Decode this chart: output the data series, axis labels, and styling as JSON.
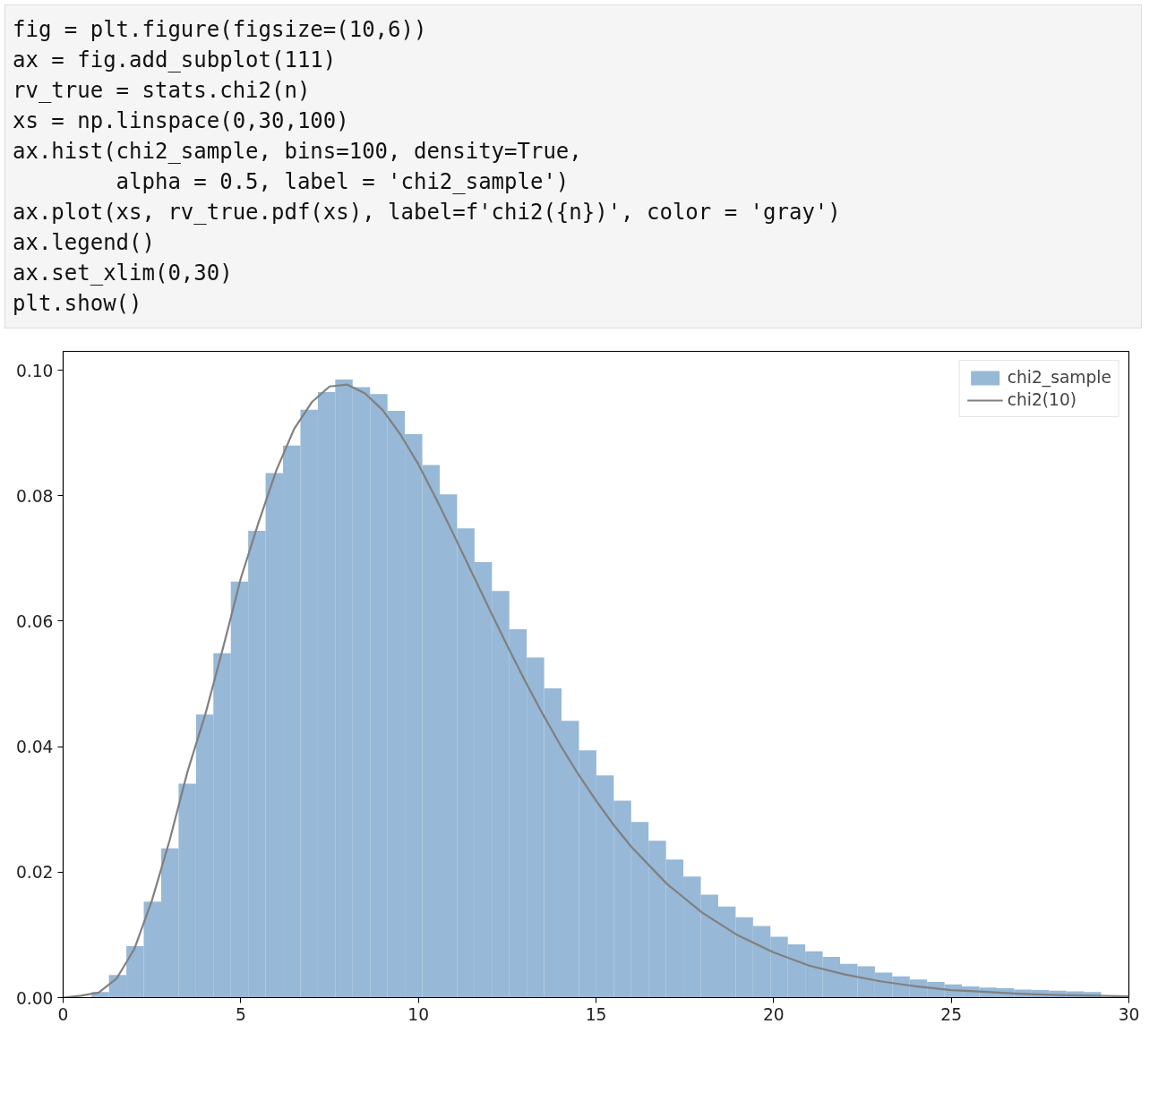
{
  "chart_data": {
    "type": "histogram",
    "annotations": [
      "fig = plt.figure(figsize=(10,6))",
      "ax = fig.add_subplot(111)",
      "rv_true = stats.chi2(n)",
      "xs = np.linspace(0,30,100)",
      "ax.hist(chi2_sample, bins=100, density=True,",
      "        alpha = 0.5, label = 'chi2_sample')",
      "ax.plot(xs, rv_true.pdf(xs), label=f'chi2({n})', color = 'gray')",
      "ax.legend()",
      "ax.set_xlim(0,30)",
      "plt.show()"
    ],
    "bins": [
      0.8,
      1.29,
      1.78,
      2.27,
      2.76,
      3.25,
      3.74,
      4.23,
      4.72,
      5.21,
      5.7,
      6.19,
      6.68,
      7.17,
      7.66,
      8.15,
      8.64,
      9.13,
      9.62,
      10.11,
      10.6,
      11.09,
      11.58,
      12.07,
      12.56,
      13.05,
      13.54,
      14.03,
      14.52,
      15.01,
      15.5,
      15.99,
      16.48,
      16.97,
      17.46,
      17.95,
      18.44,
      18.93,
      19.42,
      19.91,
      20.4,
      20.89,
      21.38,
      21.87,
      22.36,
      22.85,
      23.34,
      23.83,
      24.32,
      24.81,
      25.3,
      25.79,
      26.28,
      26.77,
      27.26,
      27.75,
      28.24,
      28.73,
      29.22,
      29.71
    ],
    "series": [
      {
        "name": "chi2_sample",
        "color": "#97b8d6",
        "values": [
          0.0009,
          0.0036,
          0.0082,
          0.0153,
          0.0238,
          0.0341,
          0.0451,
          0.0549,
          0.0663,
          0.0744,
          0.0836,
          0.088,
          0.0937,
          0.0965,
          0.0985,
          0.0973,
          0.0962,
          0.0935,
          0.0898,
          0.0849,
          0.0802,
          0.0748,
          0.0694,
          0.0648,
          0.0587,
          0.0542,
          0.0493,
          0.0441,
          0.0394,
          0.0354,
          0.0314,
          0.028,
          0.025,
          0.022,
          0.0193,
          0.0164,
          0.0145,
          0.0128,
          0.0114,
          0.0097,
          0.0085,
          0.0074,
          0.0065,
          0.0054,
          0.005,
          0.004,
          0.0034,
          0.0029,
          0.0025,
          0.0021,
          0.0018,
          0.0016,
          0.0015,
          0.0013,
          0.0012,
          0.0011,
          0.001,
          0.0009,
          null
        ]
      },
      {
        "type": "line",
        "name": "chi2(10)",
        "color": "#808080",
        "x": [
          0,
          0.5,
          1,
          1.5,
          2,
          2.5,
          3,
          3.5,
          4,
          4.5,
          5,
          5.5,
          6,
          6.5,
          7,
          7.5,
          8,
          8.5,
          9,
          9.5,
          10,
          10.5,
          11,
          11.5,
          12,
          12.5,
          13,
          13.5,
          14,
          14.5,
          15,
          15.5,
          16,
          17,
          18,
          19,
          20,
          21,
          22,
          23,
          24,
          25,
          26,
          27,
          28,
          29,
          30
        ],
        "values": [
          0,
          0.0003,
          0.0008,
          0.003,
          0.0077,
          0.0155,
          0.0251,
          0.036,
          0.0451,
          0.0557,
          0.0668,
          0.0757,
          0.084,
          0.0906,
          0.0949,
          0.0974,
          0.0977,
          0.0963,
          0.0936,
          0.0897,
          0.085,
          0.0795,
          0.0737,
          0.0678,
          0.0619,
          0.0561,
          0.0505,
          0.0452,
          0.0402,
          0.0356,
          0.0314,
          0.0275,
          0.024,
          0.0181,
          0.0135,
          0.0099,
          0.0072,
          0.0051,
          0.0037,
          0.0026,
          0.0018,
          0.0012,
          0.0009,
          0.0006,
          0.0004,
          0.0003,
          0.0002
        ]
      }
    ],
    "xlim": [
      0,
      30
    ],
    "ylim": [
      0,
      0.103
    ],
    "xticks": [
      0,
      5,
      10,
      15,
      20,
      25,
      30
    ],
    "yticks": [
      {
        "value": 0,
        "label": "0.00"
      },
      {
        "value": 0.02,
        "label": "0.02"
      },
      {
        "value": 0.04,
        "label": "0.04"
      },
      {
        "value": 0.06,
        "label": "0.06"
      },
      {
        "value": 0.08,
        "label": "0.08"
      },
      {
        "value": 0.1,
        "label": "0.10"
      }
    ],
    "legend": "top right",
    "grid": false
  }
}
